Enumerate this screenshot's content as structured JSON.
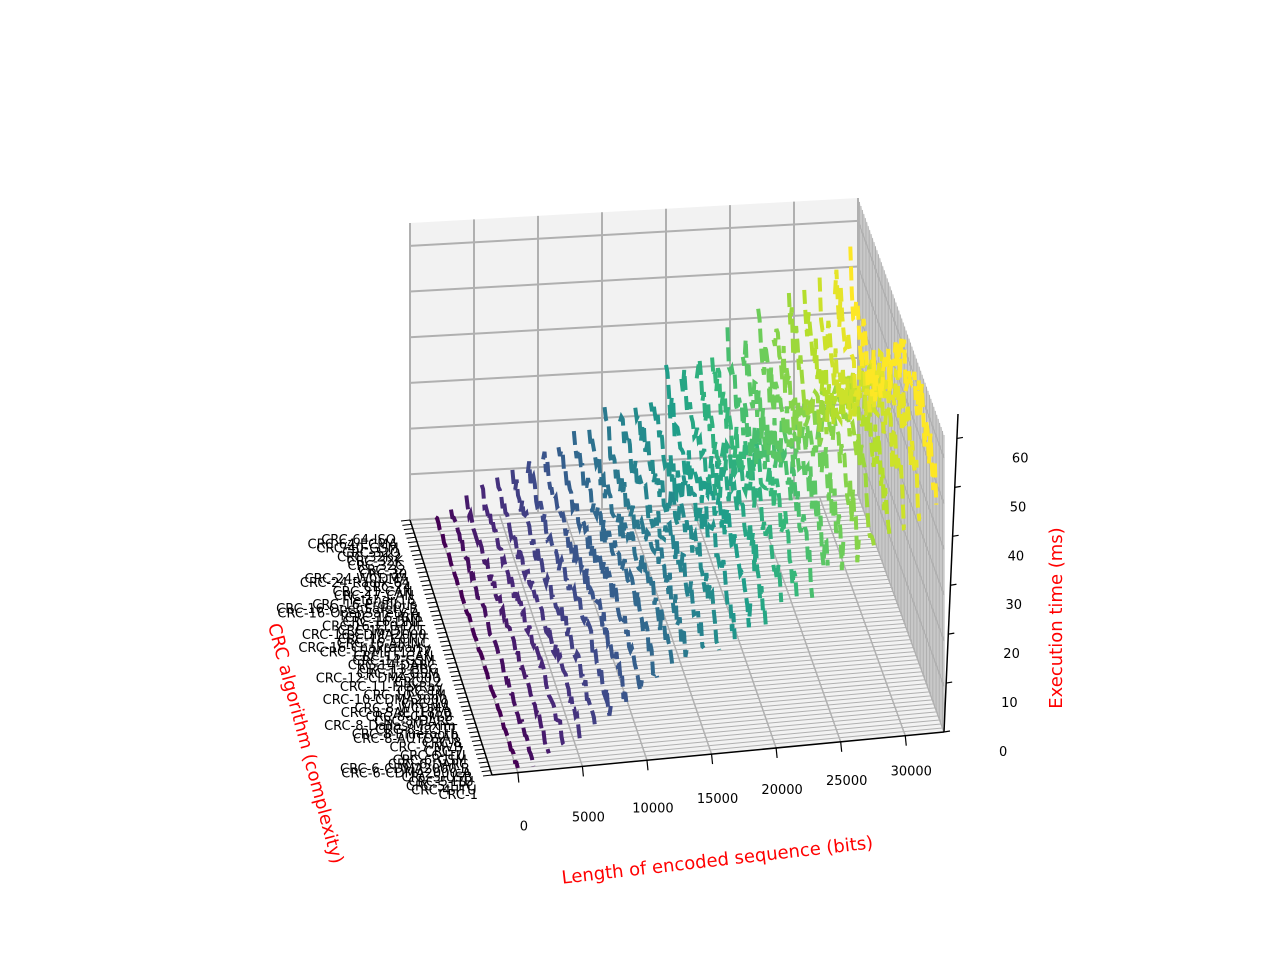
{
  "chart_data": {
    "type": "line",
    "projection": "3d",
    "colormap": "viridis",
    "title": "",
    "xlabel": "Length of encoded sequence (bits)",
    "ylabel": "CRC algorithm (complexity)",
    "zlabel": "Execution time (ms)",
    "label_color": "#ff0000",
    "x_ticks": [
      "0",
      "5000",
      "10000",
      "15000",
      "20000",
      "25000",
      "30000"
    ],
    "z_ticks": [
      "0",
      "10",
      "20",
      "30",
      "40",
      "50",
      "60"
    ],
    "xlim": [
      -2000,
      33000
    ],
    "zlim": [
      0,
      65
    ],
    "grid": true,
    "colors": {
      "pane": "#f2f2f2",
      "side_pane": "#e6e6e6",
      "grid": "#b0b0b0",
      "axis": "#000000"
    },
    "algorithms": [
      "CRC-1",
      "CRC-4-ITU",
      "CRC-5-EPC",
      "CRC-5-ITU",
      "CRC-5-USB",
      "CRC-6-CDMA2000-A",
      "CRC-6-CDMA2000-B",
      "CRC-6-DARC",
      "CRC-6-GSM",
      "CRC-6-ITU",
      "CRC-7",
      "CRC-7-MVB",
      "CRC-8",
      "CRC-8-AUTOSAR",
      "CRC-8-Bluetooth",
      "CRC-8-CCITT",
      "CRC-8-Dallas/Maxim",
      "CRC-8-DARC",
      "CRC-8-GSM-B",
      "CRC-8-SAE J1850",
      "CRC-8-WCDMA",
      "CRC-10",
      "CRC-10-CDMA2000",
      "CRC-10-GSM",
      "CRC-11",
      "CRC-11-FlexRay",
      "CRC-12",
      "CRC-12-CDMA2000",
      "CRC-12-GSM",
      "CRC-13-BBC",
      "CRC-14-DARC",
      "CRC-14-GSM",
      "CRC-15-CAN",
      "CRC-15-MPT1327",
      "CRC-16-Chakravarty",
      "CRC-16-ARINC",
      "CRC-16-CCITT",
      "CRC-16-CDMA2000",
      "CRC-16-DECT",
      "CRC-16-T10-DIF",
      "CRC-16-DNP",
      "CRC-16-IBM",
      "CRC-16-OpenSafety-A",
      "CRC-16-OpenSafety-B",
      "CRC-16-Profibus",
      "Fletcher-16",
      "CRC-17-CAN",
      "CRC-21-CAN",
      "CRC-24",
      "CRC-24-Radix-64",
      "CRC-24-WCDMA",
      "CRC-30",
      "CRC-32",
      "CRC-32C",
      "CRC-32K",
      "CRC-32K2",
      "CRC-32Q",
      "CRC-40-GSM",
      "CRC-64-ECMA",
      "CRC-64-ISO"
    ],
    "x": [
      0,
      1200,
      2400,
      3600,
      4800,
      6000,
      7200,
      8400,
      9600,
      10800,
      12000,
      13200,
      14400,
      15600,
      16800,
      18000,
      19200,
      20400,
      21600,
      22800,
      24000,
      25200,
      26400,
      27600,
      28800,
      30000,
      31200,
      32400
    ],
    "time_model": {
      "description": "",
      "ms_per_bit_min": 0.00125,
      "ms_per_bit_max": 0.00195
    }
  }
}
